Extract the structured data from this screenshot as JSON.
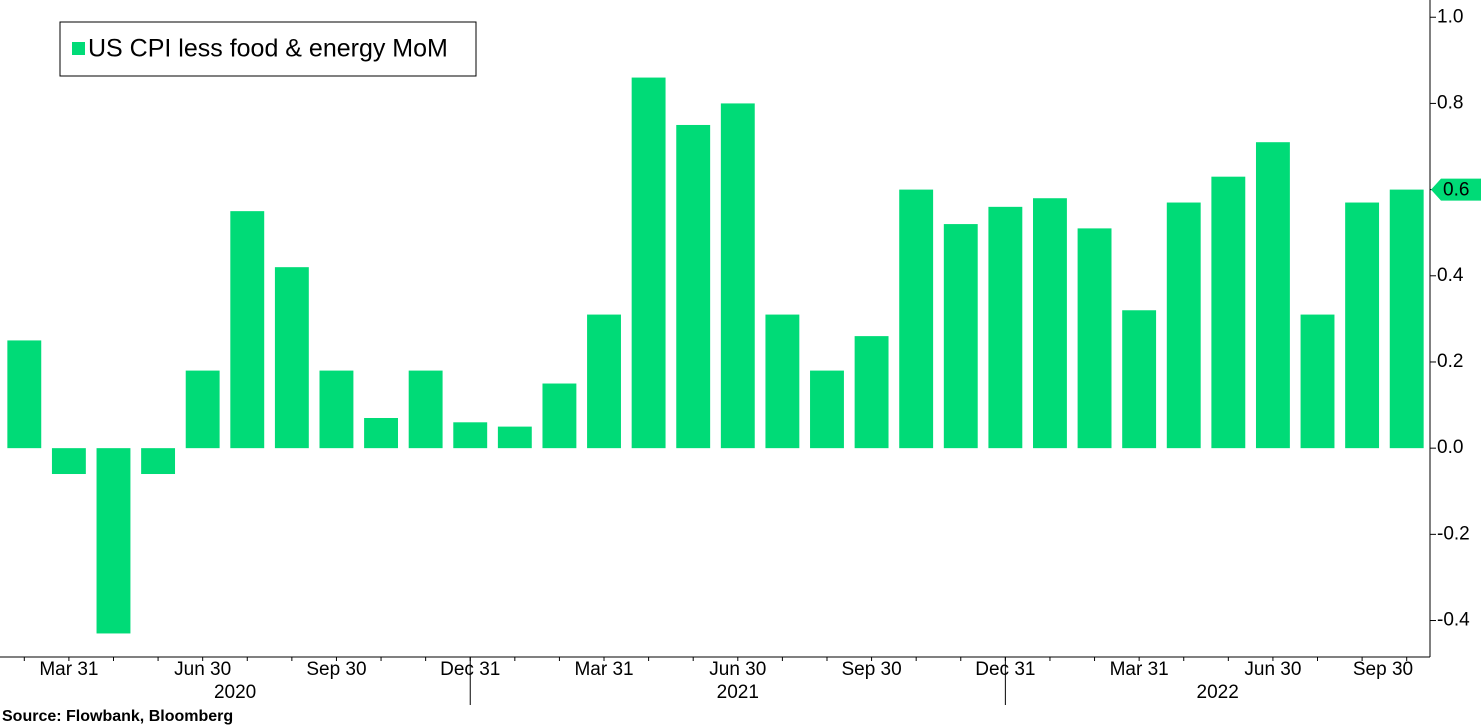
{
  "chart_data": {
    "type": "bar",
    "categories": [
      null,
      "Mar 31",
      null,
      null,
      "Jun 30",
      null,
      null,
      "Sep 30",
      null,
      null,
      "Dec 31",
      null,
      null,
      "Mar 31",
      null,
      null,
      "Jun 30",
      null,
      null,
      "Sep 30",
      null,
      null,
      "Dec 31",
      null,
      null,
      "Mar 31",
      null,
      null,
      "Jun 30",
      null,
      null,
      "Sep 30"
    ],
    "years": [
      "2020",
      "2021",
      "2022"
    ],
    "series": [
      {
        "name": "US CPI less food & energy MoM",
        "color": "#00db77",
        "values": [
          0.25,
          -0.06,
          -0.43,
          -0.06,
          0.18,
          0.55,
          0.42,
          0.18,
          0.07,
          0.18,
          0.06,
          0.05,
          0.15,
          0.31,
          0.86,
          0.75,
          0.8,
          0.31,
          0.18,
          0.26,
          0.6,
          0.52,
          0.56,
          0.58,
          0.51,
          0.32,
          0.57,
          0.63,
          0.71,
          0.31,
          0.57,
          0.6
        ]
      }
    ],
    "last_value_label": "0.6",
    "ylim": [
      -0.48,
      1.04
    ],
    "yticks": [
      -0.4,
      -0.2,
      {
        "value": 0,
        "label": "0.0"
      },
      0.2,
      0.4,
      0.6,
      0.8,
      {
        "value": 1,
        "label": "1.0"
      }
    ],
    "y_axis_side": "right",
    "legend": "top-left",
    "source": "Source: Flowbank, Bloomberg"
  }
}
